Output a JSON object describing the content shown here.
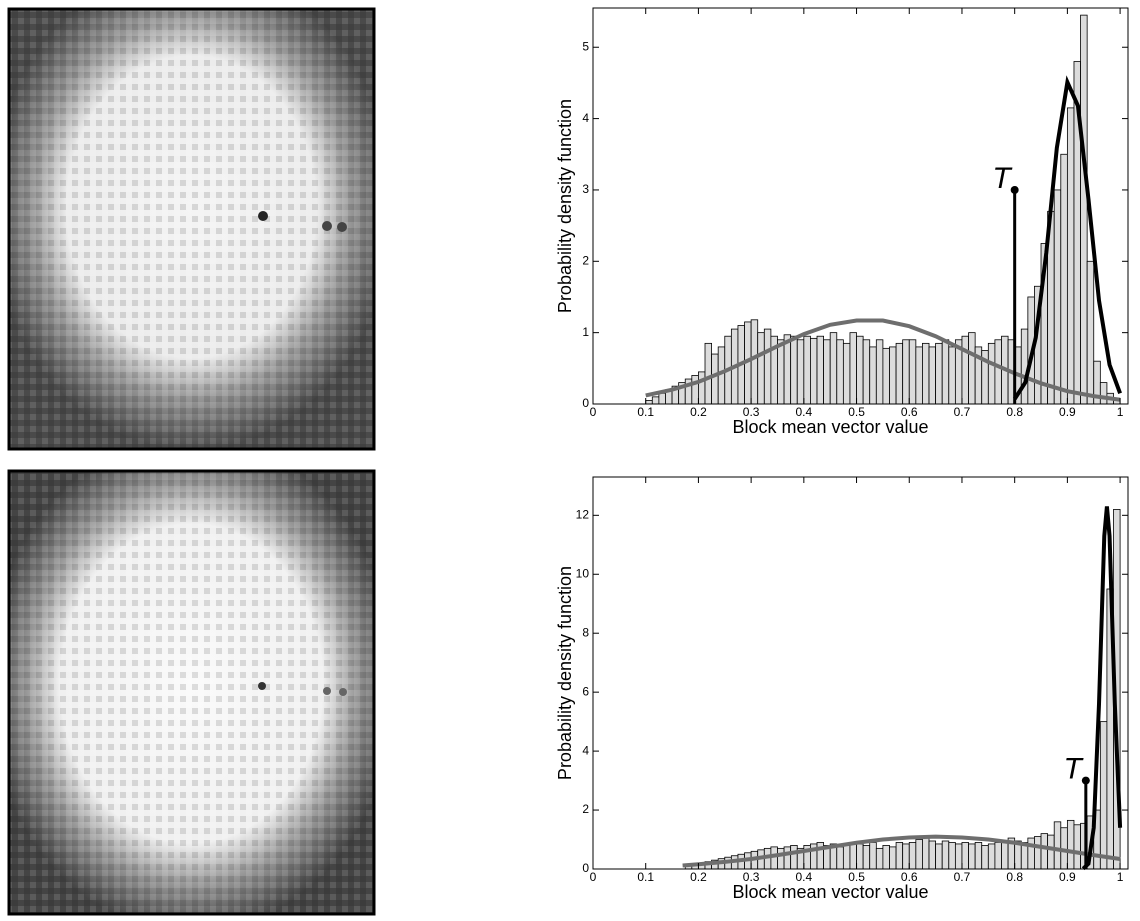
{
  "chart_data": [
    {
      "type": "histogram",
      "xlabel": "Block mean vector value",
      "ylabel": "Probability density function",
      "bins": [
        0.1,
        0.1125,
        0.125,
        0.1375,
        0.15,
        0.1625,
        0.175,
        0.1875,
        0.2,
        0.2125,
        0.225,
        0.2375,
        0.25,
        0.2625,
        0.275,
        0.2875,
        0.3,
        0.3125,
        0.325,
        0.3375,
        0.35,
        0.3625,
        0.375,
        0.3875,
        0.4,
        0.4125,
        0.425,
        0.4375,
        0.45,
        0.4625,
        0.475,
        0.4875,
        0.5,
        0.5125,
        0.525,
        0.5375,
        0.55,
        0.5625,
        0.575,
        0.5875,
        0.6,
        0.6125,
        0.625,
        0.6375,
        0.65,
        0.6625,
        0.675,
        0.6875,
        0.7,
        0.7125,
        0.725,
        0.7375,
        0.75,
        0.7625,
        0.775,
        0.7875,
        0.8,
        0.8125,
        0.825,
        0.8375,
        0.85,
        0.8625,
        0.875,
        0.8875,
        0.9,
        0.9125,
        0.925,
        0.9375,
        0.95,
        0.9625,
        0.975,
        0.9875,
        1.0
      ],
      "values": [
        0.05,
        0.1,
        0.15,
        0.2,
        0.25,
        0.3,
        0.35,
        0.4,
        0.45,
        0.85,
        0.7,
        0.8,
        0.95,
        1.05,
        1.1,
        1.15,
        1.18,
        1.0,
        1.05,
        0.95,
        0.9,
        0.97,
        0.95,
        0.9,
        0.95,
        0.92,
        0.95,
        0.9,
        1.0,
        0.9,
        0.85,
        1.0,
        0.95,
        0.9,
        0.8,
        0.9,
        0.78,
        0.8,
        0.85,
        0.9,
        0.9,
        0.8,
        0.85,
        0.8,
        0.85,
        0.9,
        0.8,
        0.9,
        0.95,
        1.0,
        0.8,
        0.75,
        0.85,
        0.9,
        0.95,
        0.9,
        0.8,
        1.05,
        1.5,
        1.65,
        2.25,
        2.7,
        3.0,
        3.5,
        4.15,
        4.8,
        5.45,
        2.0,
        0.6,
        0.3,
        0.15,
        0.05
      ],
      "color": "#dcdcdc",
      "series": [
        {
          "color": "#6e6e6e",
          "x": [
            0.1,
            0.15,
            0.2,
            0.25,
            0.3,
            0.35,
            0.4,
            0.45,
            0.5,
            0.55,
            0.6,
            0.65,
            0.7,
            0.75,
            0.8,
            0.85,
            0.9,
            0.95,
            1.0
          ],
          "values": [
            0.12,
            0.2,
            0.31,
            0.46,
            0.63,
            0.81,
            0.98,
            1.11,
            1.17,
            1.17,
            1.09,
            0.95,
            0.77,
            0.59,
            0.43,
            0.29,
            0.18,
            0.11,
            0.06
          ]
        },
        {
          "color": "#000000",
          "x": [
            0.8,
            0.82,
            0.84,
            0.86,
            0.88,
            0.9,
            0.92,
            0.94,
            0.96,
            0.98,
            1.0
          ],
          "values": [
            0.07,
            0.3,
            0.93,
            2.12,
            3.59,
            4.51,
            4.18,
            2.87,
            1.45,
            0.55,
            0.15
          ]
        }
      ],
      "annotations": [
        {
          "text": "T",
          "x": 0.8,
          "y": 3
        }
      ],
      "xlim": [
        0,
        1.015
      ],
      "xticks": [
        0,
        0.1,
        0.2,
        0.3,
        0.4,
        0.5,
        0.6,
        0.7,
        0.8,
        0.9,
        1
      ],
      "ylim": [
        0,
        5.55
      ],
      "yticks": [
        0,
        1,
        2,
        3,
        4,
        5
      ]
    },
    {
      "type": "histogram",
      "xlabel": "Block mean vector value",
      "ylabel": "Probability density function",
      "bins": [
        0.1,
        0.1125,
        0.125,
        0.1375,
        0.15,
        0.1625,
        0.175,
        0.1875,
        0.2,
        0.2125,
        0.225,
        0.2375,
        0.25,
        0.2625,
        0.275,
        0.2875,
        0.3,
        0.3125,
        0.325,
        0.3375,
        0.35,
        0.3625,
        0.375,
        0.3875,
        0.4,
        0.4125,
        0.425,
        0.4375,
        0.45,
        0.4625,
        0.475,
        0.4875,
        0.5,
        0.5125,
        0.525,
        0.5375,
        0.55,
        0.5625,
        0.575,
        0.5875,
        0.6,
        0.6125,
        0.625,
        0.6375,
        0.65,
        0.6625,
        0.675,
        0.6875,
        0.7,
        0.7125,
        0.725,
        0.7375,
        0.75,
        0.7625,
        0.775,
        0.7875,
        0.8,
        0.8125,
        0.825,
        0.8375,
        0.85,
        0.8625,
        0.875,
        0.8875,
        0.9,
        0.9125,
        0.925,
        0.9375,
        0.95,
        0.9625,
        0.975,
        0.9875,
        1.0
      ],
      "values": [
        0,
        0,
        0,
        0,
        0,
        0,
        0.1,
        0.15,
        0.2,
        0.25,
        0.3,
        0.35,
        0.4,
        0.45,
        0.5,
        0.55,
        0.6,
        0.65,
        0.7,
        0.75,
        0.7,
        0.75,
        0.8,
        0.7,
        0.8,
        0.85,
        0.9,
        0.8,
        0.85,
        0.75,
        0.8,
        0.9,
        0.85,
        0.8,
        0.9,
        0.7,
        0.8,
        0.75,
        0.9,
        0.85,
        0.9,
        1.0,
        1.05,
        0.95,
        0.85,
        0.95,
        0.9,
        0.85,
        0.9,
        0.85,
        0.9,
        0.8,
        0.85,
        0.9,
        0.95,
        1.05,
        0.95,
        0.9,
        1.05,
        1.1,
        1.2,
        1.15,
        1.6,
        1.4,
        1.65,
        1.5,
        1.55,
        1.8,
        2.0,
        5.0,
        9.5,
        12.2
      ],
      "color": "#dcdcdc",
      "series": [
        {
          "color": "#6e6e6e",
          "x": [
            0.17,
            0.2,
            0.25,
            0.3,
            0.35,
            0.4,
            0.45,
            0.5,
            0.55,
            0.6,
            0.65,
            0.7,
            0.75,
            0.8,
            0.85,
            0.9,
            0.95,
            1.0
          ],
          "values": [
            0.12,
            0.16,
            0.24,
            0.34,
            0.47,
            0.61,
            0.75,
            0.89,
            1.0,
            1.07,
            1.1,
            1.07,
            1.0,
            0.89,
            0.75,
            0.61,
            0.47,
            0.34
          ]
        },
        {
          "color": "#000000",
          "x": [
            0.93,
            0.94,
            0.95,
            0.96,
            0.97,
            0.975,
            0.98,
            0.99,
            1.0
          ],
          "values": [
            0.01,
            0.18,
            1.4,
            5.6,
            11.3,
            12.3,
            11.3,
            5.6,
            1.4
          ]
        }
      ],
      "annotations": [
        {
          "text": "T",
          "x": 0.935,
          "y": 3
        }
      ],
      "xlim": [
        0,
        1.015
      ],
      "xticks": [
        0,
        0.1,
        0.2,
        0.3,
        0.4,
        0.5,
        0.6,
        0.7,
        0.8,
        0.9,
        1
      ],
      "ylim": [
        0,
        13.3
      ],
      "yticks": [
        0,
        2,
        4,
        6,
        8,
        10,
        12
      ]
    }
  ]
}
